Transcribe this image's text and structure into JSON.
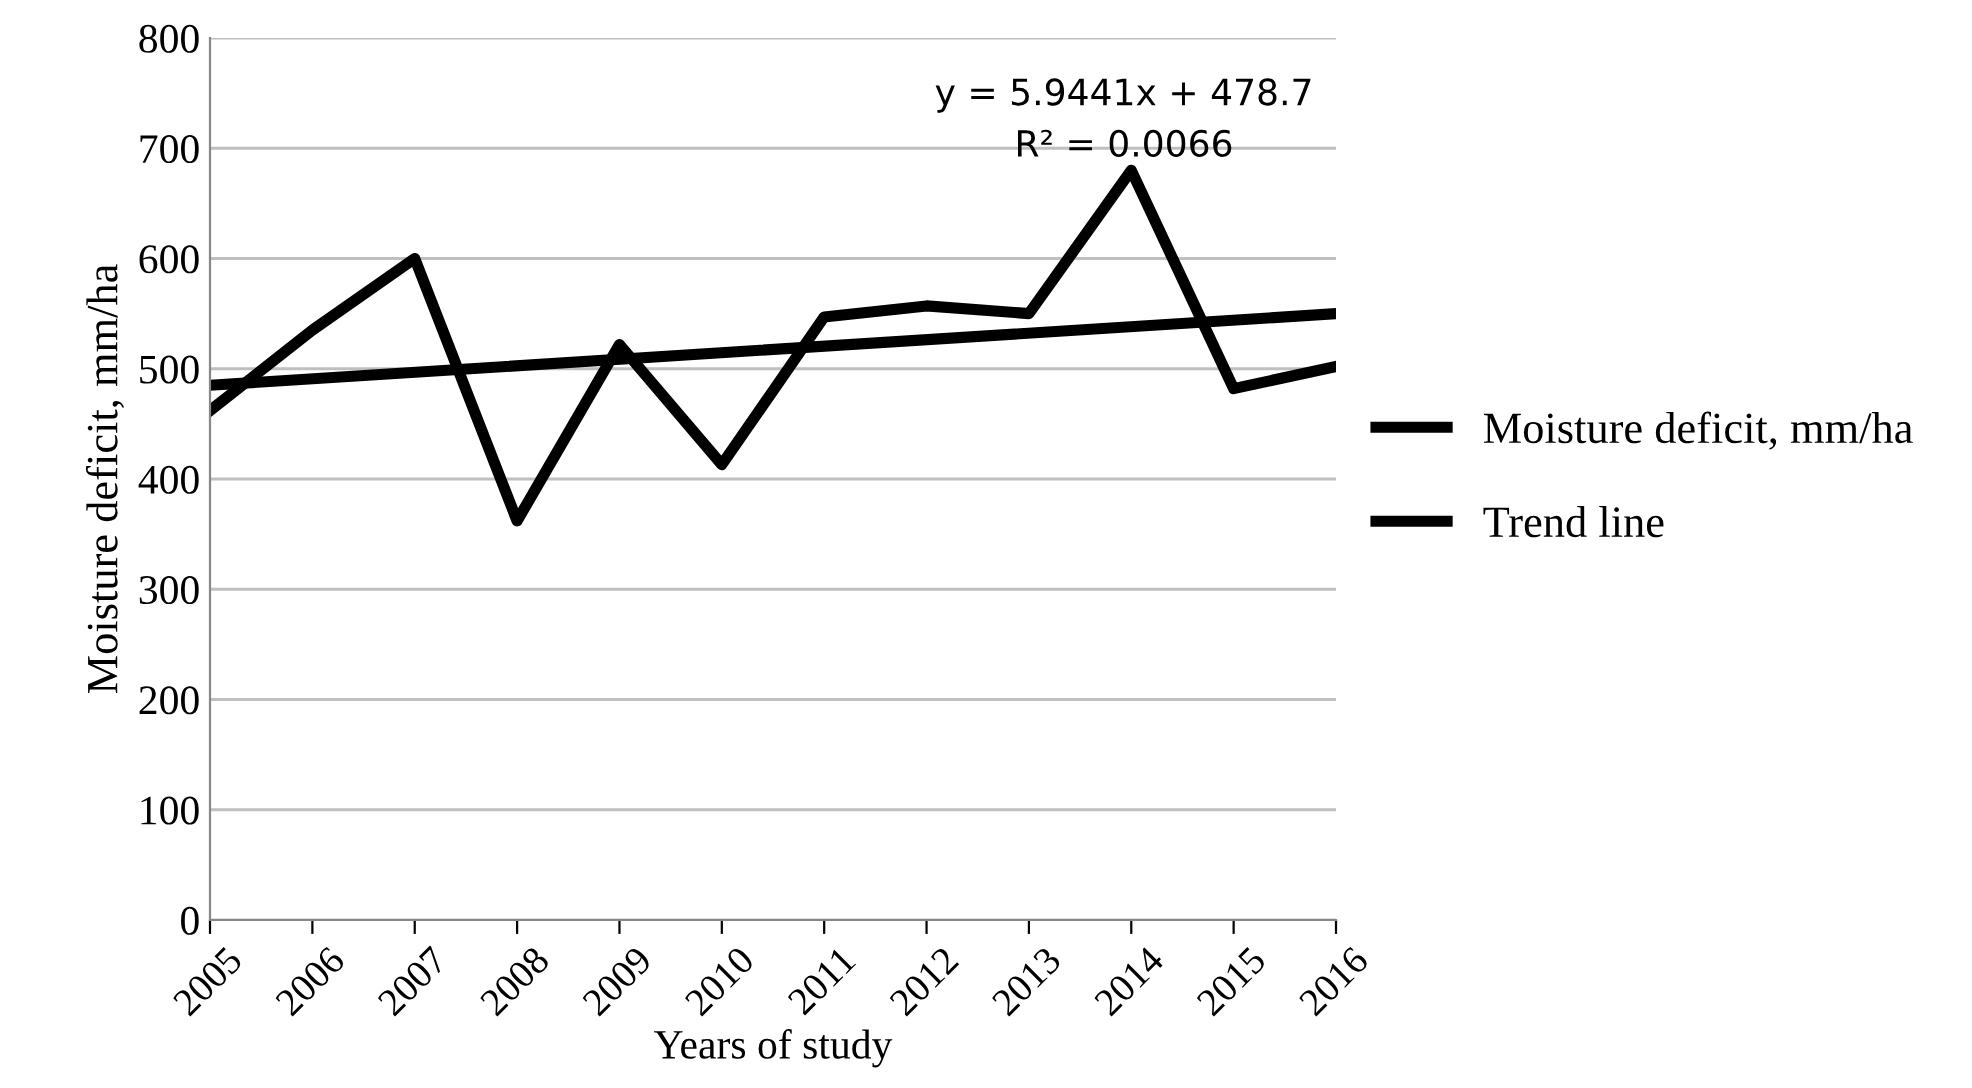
{
  "chart_data": {
    "type": "line",
    "xlabel": "Years of study",
    "ylabel": "Moisture deficit, mm/ha",
    "x": [
      2005,
      2006,
      2007,
      2008,
      2009,
      2010,
      2011,
      2012,
      2013,
      2014,
      2015,
      2016
    ],
    "series": [
      {
        "name": "Moisture deficit, mm/ha",
        "color": "#000000",
        "values": [
          462,
          535,
          600,
          362,
          522,
          413,
          547,
          557,
          550,
          680,
          482,
          502
        ]
      },
      {
        "name": "Trend line",
        "color": "#000000",
        "type": "line",
        "x": [
          2005,
          2016
        ],
        "values": [
          485,
          550
        ]
      }
    ],
    "annotations": [
      "y = 5.9441x + 478.7\nR² = 0.0066"
    ],
    "xlim": [
      2005,
      2016
    ],
    "xticks": [
      2005,
      2006,
      2007,
      2008,
      2009,
      2010,
      2011,
      2012,
      2013,
      2014,
      2015,
      2016
    ],
    "ylim": [
      0,
      800
    ],
    "yticks": [
      0,
      100,
      200,
      300,
      400,
      500,
      600,
      700,
      800
    ],
    "grid": "y",
    "legend": "right",
    "marker": "none",
    "line_style": "solid"
  }
}
